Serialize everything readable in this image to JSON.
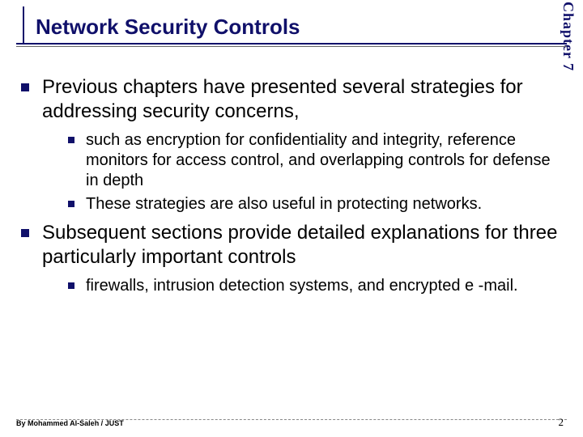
{
  "title": "Network Security Controls",
  "chapter": "Chapter 7",
  "bullets": {
    "l1_0": "Previous chapters have presented several strategies for addressing security concerns,",
    "l2_0": "such as encryption for confidentiality and integrity, reference monitors for access control, and overlapping controls for defense in depth",
    "l2_1": "These strategies are also useful in protecting networks.",
    "l1_1": "Subsequent sections provide detailed explanations for three particularly important controls",
    "l2_2": "firewalls, intrusion detection systems, and encrypted e -mail."
  },
  "footer": {
    "author": "By Mohammed Al-Saleh / JUST",
    "page": "2"
  },
  "colors": {
    "accent": "#10106a",
    "text": "#000000",
    "background": "#ffffff"
  }
}
